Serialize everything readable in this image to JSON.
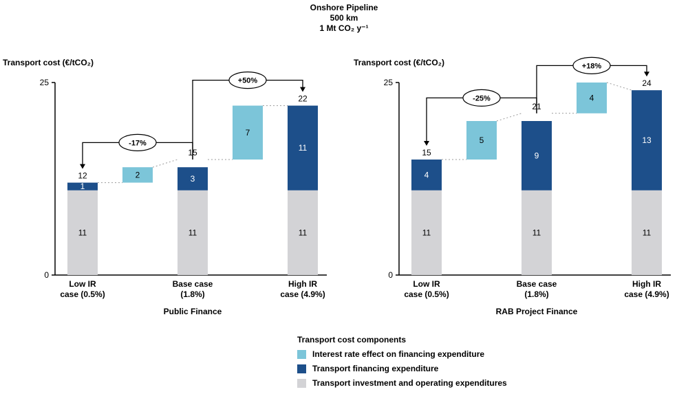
{
  "title": {
    "line1": "Onshore Pipeline",
    "line2": "500 km",
    "line3": "1 Mt CO₂ y⁻¹"
  },
  "series_colors": {
    "ir_effect": "#7cc5d9",
    "financing": "#1d4f8a",
    "investment": "#d3d3d6"
  },
  "legend": {
    "title": "Transport cost components",
    "items": [
      {
        "series": "ir_effect",
        "label": "Interest rate effect on financing expenditure"
      },
      {
        "series": "financing",
        "label": "Transport financing expenditure"
      },
      {
        "series": "investment",
        "label": "Transport investment and operating expenditures"
      }
    ]
  },
  "chart_data": [
    {
      "type": "bar",
      "variant": "stacked-waterfall",
      "panel_title": "Public Finance",
      "ylabel": "Transport cost (€/tCO₂)",
      "ylim": [
        0,
        25
      ],
      "yticks": [
        0,
        25
      ],
      "categories": [
        [
          "Low IR",
          "case (0.5%)"
        ],
        [
          "Base case",
          "(1.8%)"
        ],
        [
          "High IR",
          "case (4.9%)"
        ]
      ],
      "bars": [
        {
          "total": 12,
          "segments": [
            {
              "series": "investment",
              "value": 11
            },
            {
              "series": "financing",
              "value": 1
            }
          ]
        },
        {
          "total": 15,
          "segments": [
            {
              "series": "investment",
              "value": 11
            },
            {
              "series": "financing",
              "value": 3
            }
          ]
        },
        {
          "total": 22,
          "segments": [
            {
              "series": "investment",
              "value": 11
            },
            {
              "series": "financing",
              "value": 11
            }
          ]
        }
      ],
      "floating_segments": [
        {
          "series": "ir_effect",
          "value": 2,
          "between": [
            0,
            1
          ]
        },
        {
          "series": "ir_effect",
          "value": 7,
          "between": [
            1,
            2
          ]
        }
      ],
      "annotations": [
        {
          "label": "-17%",
          "from_bar": 1,
          "to_bar": 0,
          "bracket_level": 17.2
        },
        {
          "label": "+50%",
          "from_bar": 1,
          "to_bar": 2,
          "bracket_level": 25.3
        }
      ]
    },
    {
      "type": "bar",
      "variant": "stacked-waterfall",
      "panel_title": "RAB Project Finance",
      "ylabel": "Transport cost (€/tCO₂)",
      "ylim": [
        0,
        25
      ],
      "yticks": [
        0,
        25
      ],
      "categories": [
        [
          "Low IR",
          "case (0.5%)"
        ],
        [
          "Base case",
          "(1.8%)"
        ],
        [
          "High IR",
          "case (4.9%)"
        ]
      ],
      "bars": [
        {
          "total": 15,
          "segments": [
            {
              "series": "investment",
              "value": 11
            },
            {
              "series": "financing",
              "value": 4
            }
          ]
        },
        {
          "total": 21,
          "segments": [
            {
              "series": "investment",
              "value": 11
            },
            {
              "series": "financing",
              "value": 9
            }
          ]
        },
        {
          "total": 24,
          "segments": [
            {
              "series": "investment",
              "value": 11
            },
            {
              "series": "financing",
              "value": 13
            }
          ]
        }
      ],
      "floating_segments": [
        {
          "series": "ir_effect",
          "value": 5,
          "between": [
            0,
            1
          ]
        },
        {
          "series": "ir_effect",
          "value": 4,
          "between": [
            1,
            2
          ]
        }
      ],
      "annotations": [
        {
          "label": "-25%",
          "from_bar": 1,
          "to_bar": 0,
          "bracket_level": 23.0
        },
        {
          "label": "+18%",
          "from_bar": 1,
          "to_bar": 2,
          "bracket_level": 27.2
        }
      ]
    }
  ]
}
